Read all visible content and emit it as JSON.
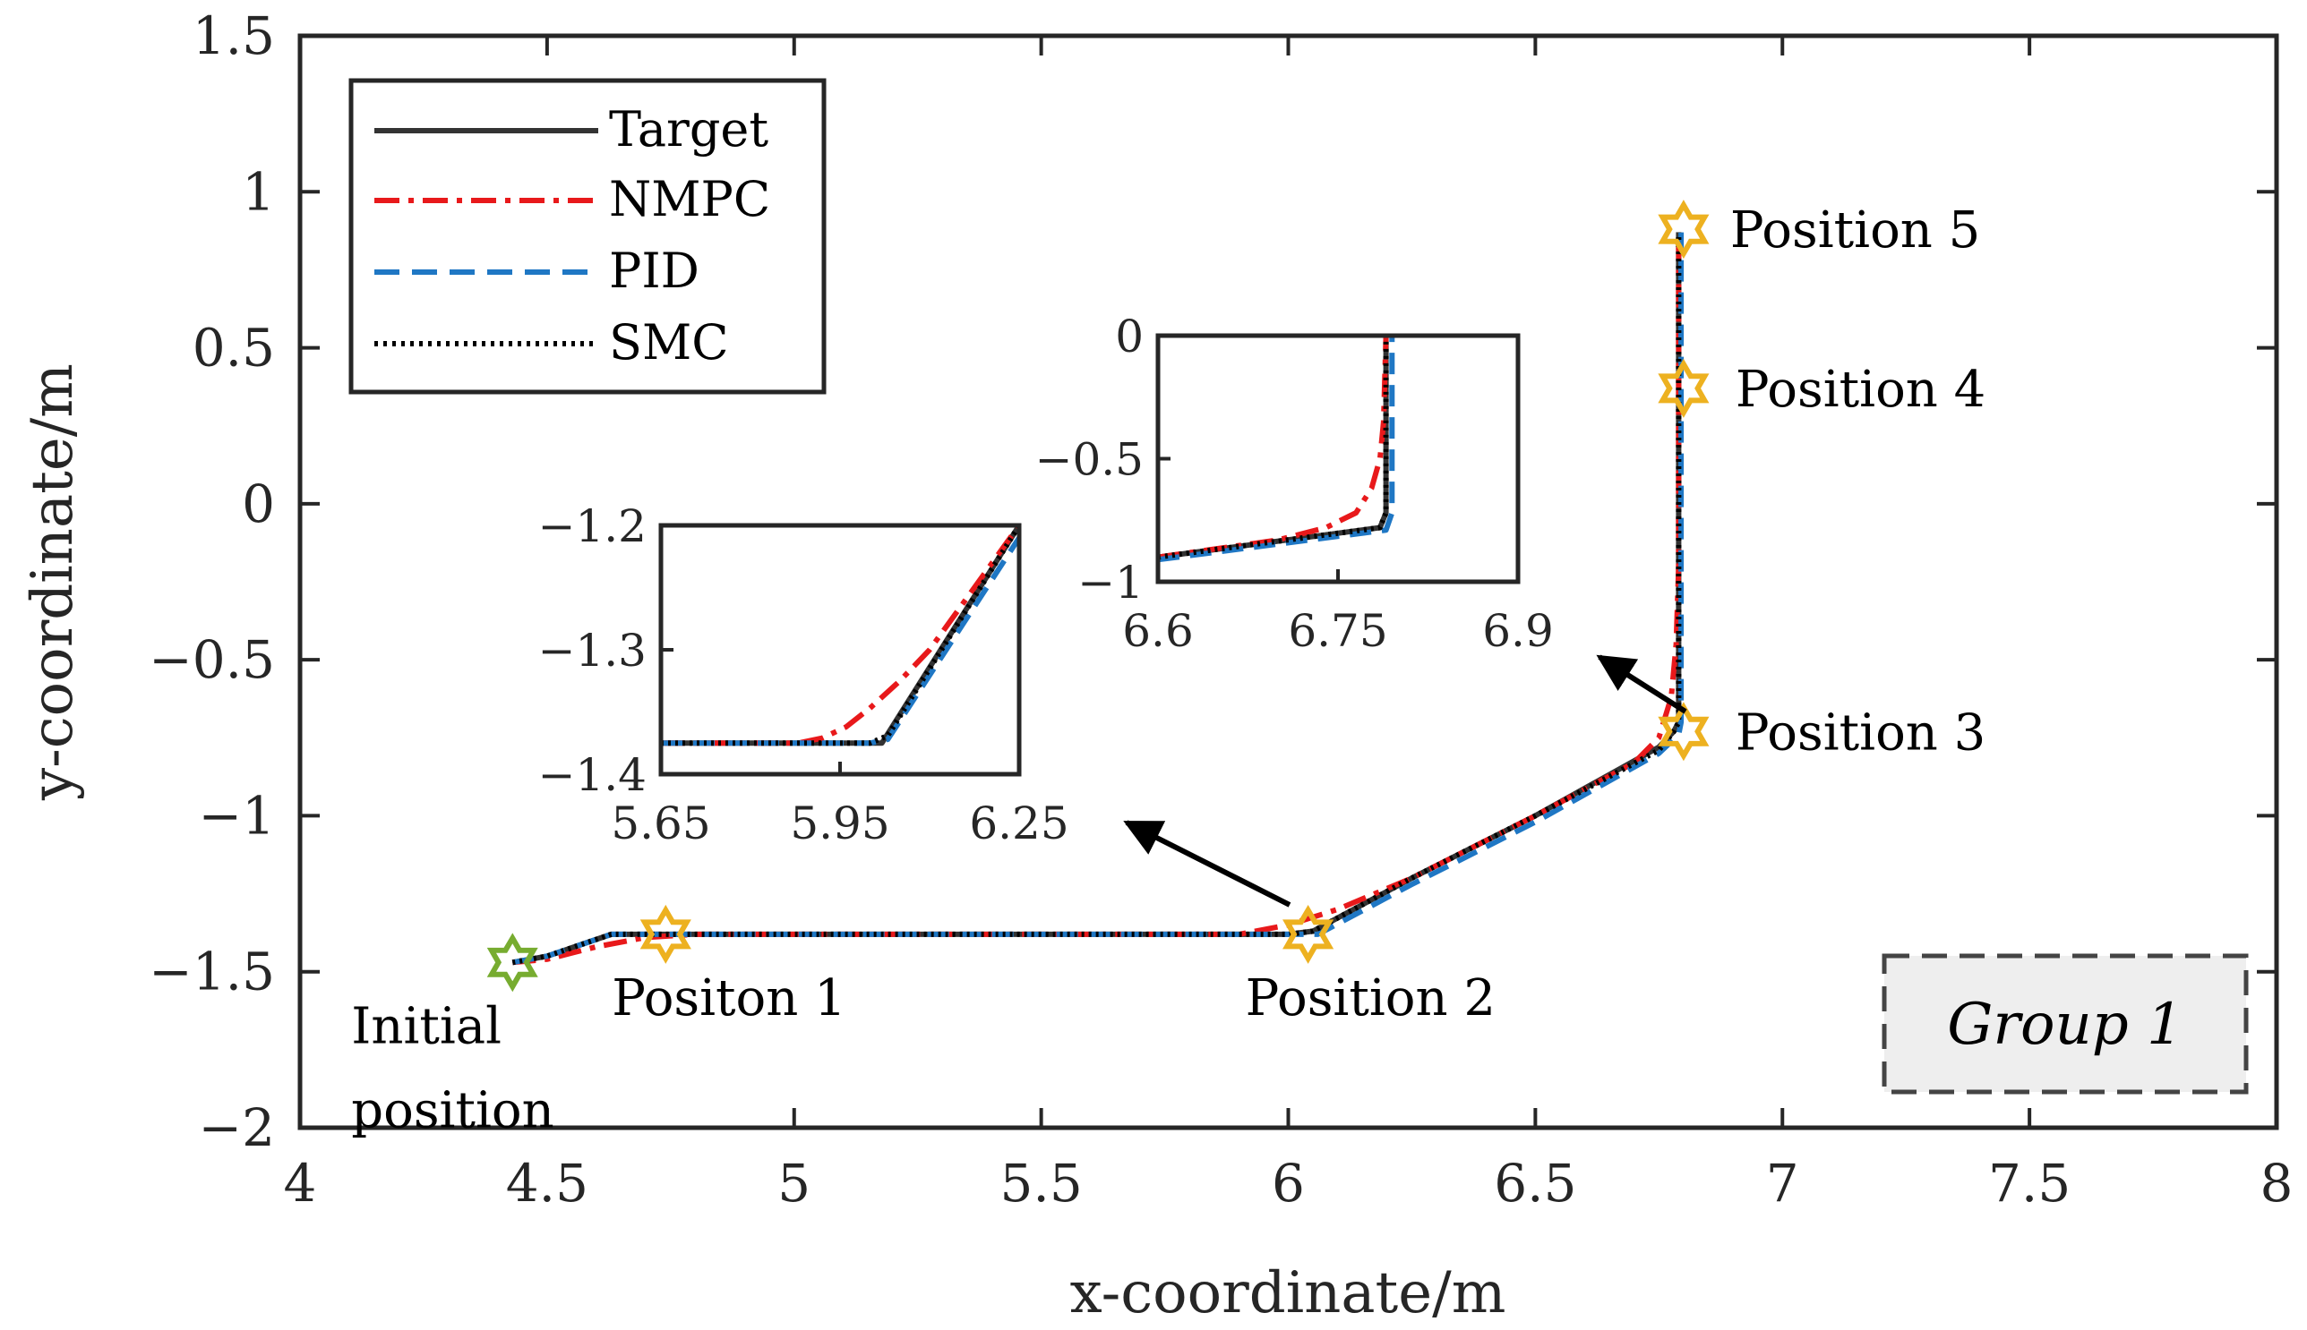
{
  "chart_data": [
    {
      "type": "line",
      "title": "",
      "xlabel": "x-coordinate/m",
      "ylabel": "y-coordinate/m",
      "xlim": [
        4,
        8
      ],
      "ylim": [
        -2,
        1.5
      ],
      "x_ticks": [
        4,
        4.5,
        5,
        5.5,
        6,
        6.5,
        7,
        7.5,
        8
      ],
      "y_ticks": [
        -2,
        -1.5,
        -1,
        -0.5,
        0,
        0.5,
        1,
        1.5
      ],
      "x_tick_labels": [
        "4",
        "4.5",
        "5",
        "5.5",
        "6",
        "6.5",
        "7",
        "7.5",
        "8"
      ],
      "y_tick_labels": [
        "−2",
        "−1.5",
        "−1",
        "−0.5",
        "0",
        "0.5",
        "1",
        "1.5"
      ],
      "grid": false,
      "legend": "top-left",
      "series": [
        {
          "name": "Target",
          "color": "#333333",
          "style": "solid",
          "x": [
            4.43,
            4.5,
            4.63,
            4.73,
            5.0,
            5.5,
            6.0,
            6.05,
            6.25,
            6.5,
            6.75,
            6.78,
            6.79,
            6.79,
            6.79
          ],
          "y": [
            -1.47,
            -1.45,
            -1.38,
            -1.38,
            -1.38,
            -1.38,
            -1.38,
            -1.37,
            -1.2,
            -1.0,
            -0.78,
            -0.73,
            -0.7,
            0.0,
            0.87
          ]
        },
        {
          "name": "NMPC",
          "color": "#e8191b",
          "style": "dashdot",
          "x": [
            4.43,
            4.5,
            4.6,
            4.7,
            4.8,
            5.0,
            5.5,
            5.9,
            6.0,
            6.1,
            6.25,
            6.5,
            6.7,
            6.75,
            6.775,
            6.785,
            6.79,
            6.79
          ],
          "y": [
            -1.47,
            -1.46,
            -1.42,
            -1.39,
            -1.38,
            -1.38,
            -1.38,
            -1.38,
            -1.35,
            -1.3,
            -1.2,
            -1.0,
            -0.83,
            -0.75,
            -0.62,
            -0.45,
            -0.2,
            0.87
          ]
        },
        {
          "name": "PID",
          "color": "#1f77c4",
          "style": "dashed",
          "x": [
            4.43,
            4.5,
            4.63,
            4.73,
            5.0,
            5.5,
            6.0,
            6.06,
            6.25,
            6.5,
            6.75,
            6.79,
            6.795,
            6.795,
            6.795
          ],
          "y": [
            -1.47,
            -1.45,
            -1.38,
            -1.38,
            -1.38,
            -1.38,
            -1.38,
            -1.38,
            -1.22,
            -1.02,
            -0.8,
            -0.74,
            -0.7,
            0.0,
            0.87
          ]
        },
        {
          "name": "SMC",
          "color": "#000000",
          "style": "dotted",
          "x": [
            4.43,
            4.5,
            4.63,
            4.73,
            5.0,
            5.5,
            6.0,
            6.05,
            6.25,
            6.5,
            6.75,
            6.78,
            6.79,
            6.79,
            6.79
          ],
          "y": [
            -1.47,
            -1.45,
            -1.38,
            -1.38,
            -1.38,
            -1.38,
            -1.38,
            -1.37,
            -1.2,
            -1.0,
            -0.79,
            -0.73,
            -0.7,
            0.0,
            0.87
          ]
        }
      ],
      "markers": [
        {
          "label": "Initial",
          "label2": "position",
          "x": 4.43,
          "y": -1.47,
          "color": "#77ac30"
        },
        {
          "label": "Positon 1",
          "x": 4.74,
          "y": -1.38,
          "color": "#edb120"
        },
        {
          "label": "Position 2",
          "x": 6.04,
          "y": -1.38,
          "color": "#edb120"
        },
        {
          "label": "Position 3",
          "x": 6.8,
          "y": -0.73,
          "color": "#edb120"
        },
        {
          "label": "Position 4",
          "x": 6.8,
          "y": 0.37,
          "color": "#edb120"
        },
        {
          "label": "Position 5",
          "x": 6.8,
          "y": 0.88,
          "color": "#edb120"
        }
      ],
      "annotation": {
        "text": "Group 1"
      }
    },
    {
      "type": "line",
      "title": "",
      "xlabel": "",
      "ylabel": "",
      "xlim": [
        5.65,
        6.25
      ],
      "ylim": [
        -1.4,
        -1.2
      ],
      "x_ticks": [
        5.65,
        5.95,
        6.25
      ],
      "y_ticks": [
        -1.4,
        -1.3,
        -1.2
      ],
      "x_tick_labels": [
        "5.65",
        "5.95",
        "6.25"
      ],
      "y_tick_labels": [
        "−1.4",
        "−1.3",
        "−1.2"
      ],
      "series": [
        {
          "name": "Target",
          "color": "#333333",
          "style": "solid",
          "x": [
            5.65,
            6.02,
            6.25
          ],
          "y": [
            -1.375,
            -1.375,
            -1.2
          ]
        },
        {
          "name": "NMPC",
          "color": "#e8191b",
          "style": "dashdot",
          "x": [
            5.65,
            5.88,
            5.92,
            5.96,
            6.0,
            6.05,
            6.1,
            6.25
          ],
          "y": [
            -1.375,
            -1.375,
            -1.371,
            -1.362,
            -1.347,
            -1.325,
            -1.3,
            -1.2
          ]
        },
        {
          "name": "PID",
          "color": "#1f77c4",
          "style": "dashed",
          "x": [
            5.65,
            6.0,
            6.03,
            6.25
          ],
          "y": [
            -1.375,
            -1.375,
            -1.372,
            -1.21
          ]
        },
        {
          "name": "SMC",
          "color": "#000000",
          "style": "dotted",
          "x": [
            5.65,
            6.0,
            6.03,
            6.25
          ],
          "y": [
            -1.375,
            -1.375,
            -1.369,
            -1.2
          ]
        }
      ]
    },
    {
      "type": "line",
      "title": "",
      "xlabel": "",
      "ylabel": "",
      "xlim": [
        6.6,
        6.9
      ],
      "ylim": [
        -1,
        0
      ],
      "x_ticks": [
        6.6,
        6.75,
        6.9
      ],
      "y_ticks": [
        -1,
        -0.5,
        0
      ],
      "x_tick_labels": [
        "6.6",
        "6.75",
        "6.9"
      ],
      "y_tick_labels": [
        "−1",
        "−0.5",
        "0"
      ],
      "series": [
        {
          "name": "Target",
          "color": "#333333",
          "style": "solid",
          "x": [
            6.6,
            6.785,
            6.79,
            6.79
          ],
          "y": [
            -0.9,
            -0.78,
            -0.72,
            0.0
          ]
        },
        {
          "name": "NMPC",
          "color": "#e8191b",
          "style": "dashdot",
          "x": [
            6.6,
            6.7,
            6.74,
            6.765,
            6.778,
            6.785,
            6.788,
            6.79
          ],
          "y": [
            -0.9,
            -0.83,
            -0.78,
            -0.72,
            -0.62,
            -0.5,
            -0.35,
            0.0
          ]
        },
        {
          "name": "PID",
          "color": "#1f77c4",
          "style": "dashed",
          "x": [
            6.6,
            6.79,
            6.795,
            6.795
          ],
          "y": [
            -0.91,
            -0.79,
            -0.72,
            0.0
          ]
        },
        {
          "name": "SMC",
          "color": "#000000",
          "style": "dotted",
          "x": [
            6.6,
            6.785,
            6.79,
            6.79
          ],
          "y": [
            -0.9,
            -0.78,
            -0.72,
            0.0
          ]
        }
      ]
    }
  ]
}
